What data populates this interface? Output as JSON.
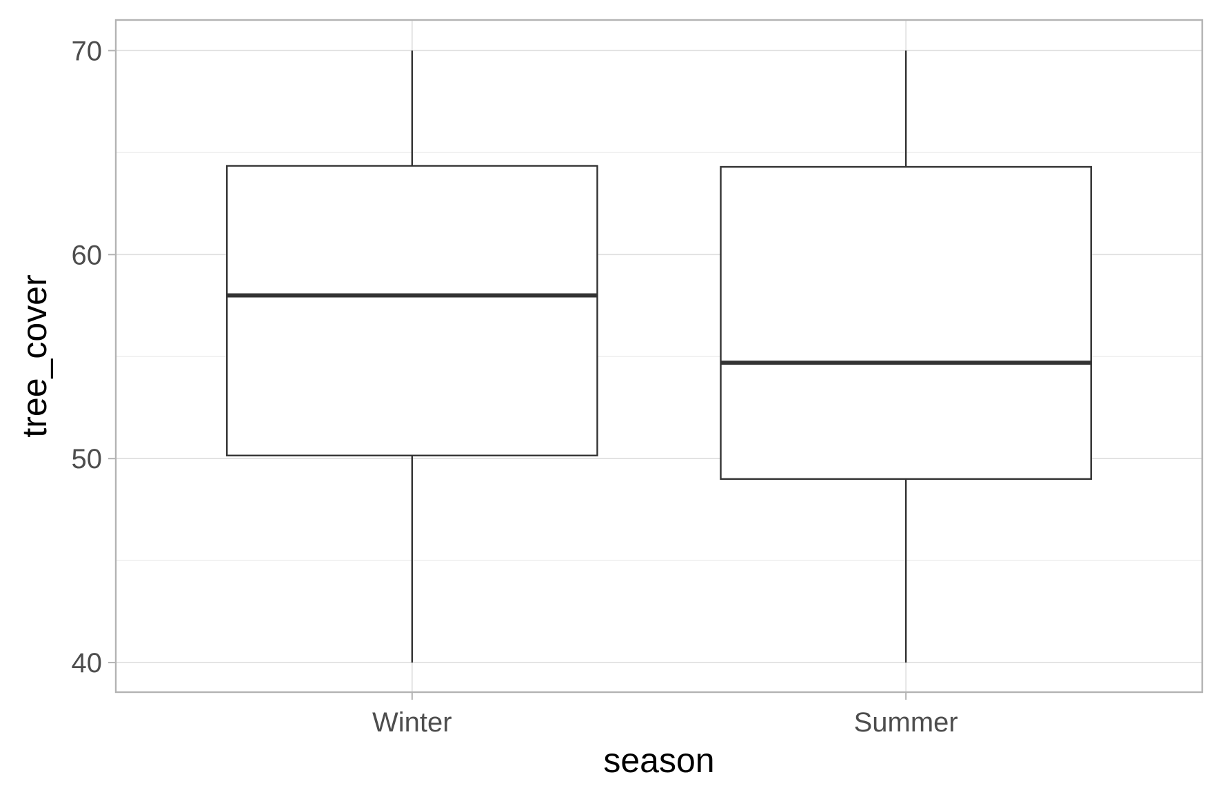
{
  "chart_data": {
    "type": "boxplot",
    "xlabel": "season",
    "ylabel": "tree_cover",
    "ylim": [
      38.55,
      71.5
    ],
    "yticks": [
      40,
      50,
      60,
      70
    ],
    "y_minor_ticks": [
      45,
      55,
      65
    ],
    "categories": [
      "Winter",
      "Summer"
    ],
    "boxes": [
      {
        "category": "Winter",
        "whisker_low": 40,
        "q1": 50.15,
        "median": 58.0,
        "q3": 64.35,
        "whisker_high": 70
      },
      {
        "category": "Summer",
        "whisker_low": 40,
        "q1": 49.0,
        "median": 54.7,
        "q3": 64.3,
        "whisker_high": 70
      }
    ],
    "grid": true,
    "legend": "none"
  },
  "colors": {
    "background": "#ffffff",
    "panel_border": "#b3b3b3",
    "major_grid": "#dedede",
    "minor_grid": "#ececec",
    "box_line": "#333333",
    "tick_text": "#4d4d4d",
    "axis_title": "#000000"
  }
}
